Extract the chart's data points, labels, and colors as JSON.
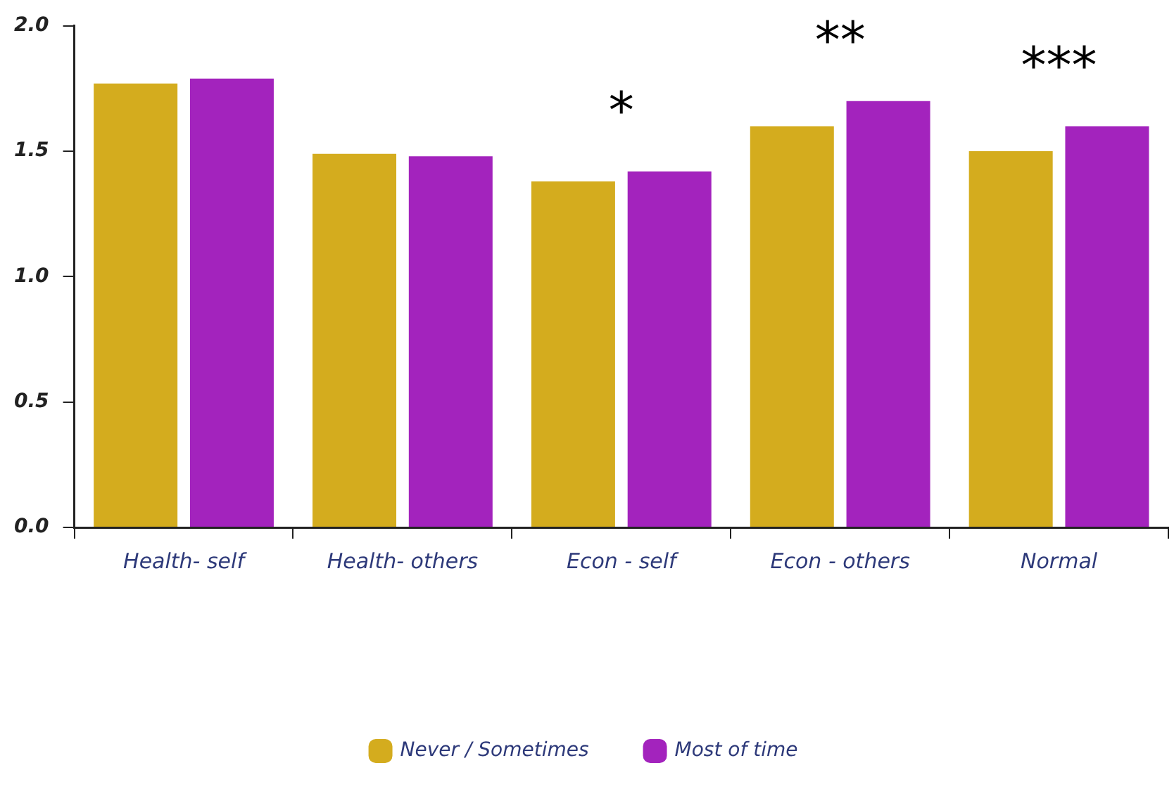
{
  "chart_data": {
    "type": "bar",
    "categories": [
      "Health- self",
      "Health- others",
      "Econ - self",
      "Econ - others",
      "Normal"
    ],
    "series": [
      {
        "name": "Never / Sometimes",
        "color": "#d4ac1e",
        "values": [
          1.77,
          1.49,
          1.38,
          1.6,
          1.5
        ]
      },
      {
        "name": "Most of time",
        "color": "#a323bd",
        "values": [
          1.79,
          1.48,
          1.42,
          1.7,
          1.6
        ]
      }
    ],
    "ylim": [
      0,
      2
    ],
    "yticks": [
      {
        "value": 0,
        "label": "0.0"
      },
      {
        "value": 0.5,
        "label": "0.5"
      },
      {
        "value": 1,
        "label": "1.0"
      },
      {
        "value": 1.5,
        "label": "1.5"
      },
      {
        "value": 2,
        "label": "2.0"
      }
    ],
    "annotations": [
      "*",
      "**",
      "***"
    ],
    "legend": "bottom",
    "grid": false
  }
}
